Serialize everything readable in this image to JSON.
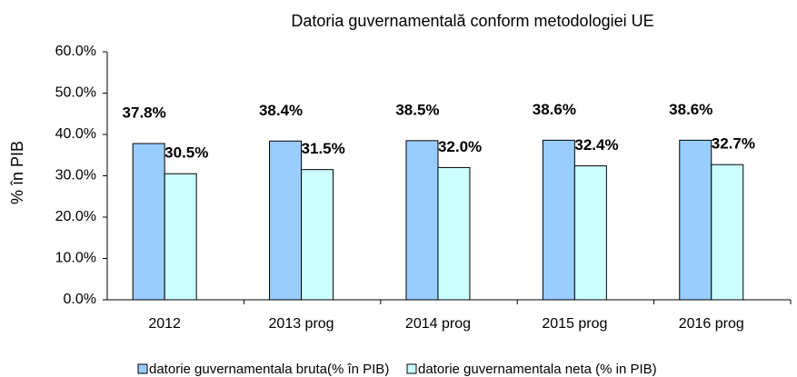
{
  "chart_data": {
    "type": "bar",
    "title": "Datoria guvernamentală conform metodologiei UE",
    "y_label": "% în PIB",
    "categories": [
      "2012",
      "2013 prog",
      "2014 prog",
      "2015 prog",
      "2016 prog"
    ],
    "series": [
      {
        "name": "datorie guvernamentala  bruta(% în PIB)",
        "color": "#99ccff",
        "values": [
          37.8,
          38.4,
          38.5,
          38.6,
          38.6
        ],
        "value_labels": [
          "37.8%",
          "38.4%",
          "38.5%",
          "38.6%",
          "38.6%"
        ]
      },
      {
        "name": "datorie guvernamentala neta (% in PIB)",
        "color": "#ccffff",
        "values": [
          30.5,
          31.5,
          32.0,
          32.4,
          32.7
        ],
        "value_labels": [
          "30.5%",
          "31.5%",
          "32.0%",
          "32.4%",
          "32.7%"
        ]
      }
    ],
    "ylim": [
      0,
      60
    ],
    "yticks": [
      {
        "value": 0,
        "label": "0.0%"
      },
      {
        "value": 10,
        "label": "10.0%"
      },
      {
        "value": 20,
        "label": "20.0%"
      },
      {
        "value": 30,
        "label": "30.0%"
      },
      {
        "value": 40,
        "label": "40.0%"
      },
      {
        "value": 50,
        "label": "50.0%"
      },
      {
        "value": 60,
        "label": "60.0%"
      }
    ],
    "grid": false,
    "legend": "bottom"
  }
}
